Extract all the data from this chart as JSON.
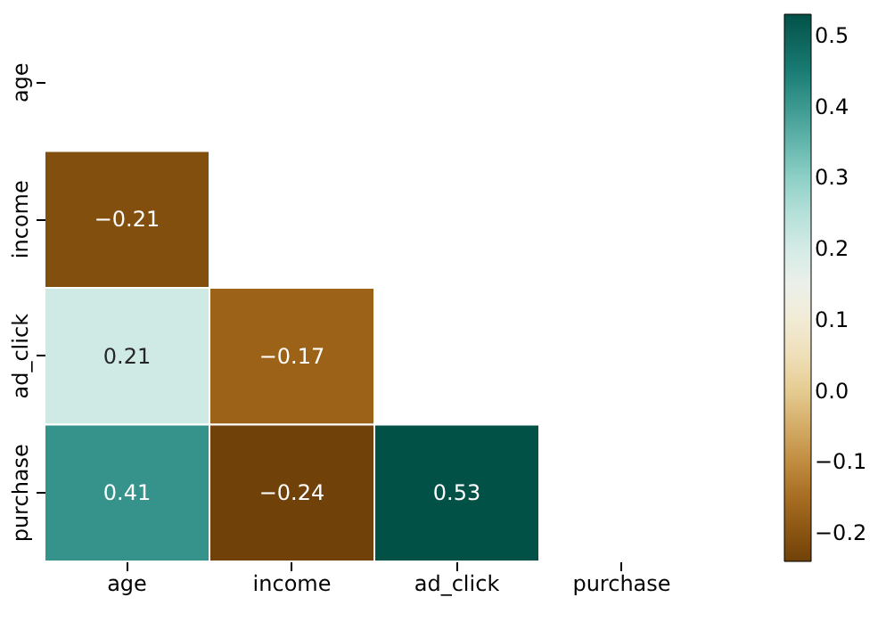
{
  "chart_data": {
    "type": "heatmap",
    "categories": [
      "age",
      "income",
      "ad_click",
      "purchase"
    ],
    "y_categories": [
      "age",
      "income",
      "ad_click",
      "purchase"
    ],
    "cells": [
      [
        null,
        null,
        null,
        null
      ],
      [
        -0.21,
        null,
        null,
        null
      ],
      [
        0.21,
        -0.17,
        null,
        null
      ],
      [
        0.41,
        -0.24,
        0.53,
        null
      ]
    ],
    "data_labels": true,
    "clim": [
      -0.24,
      0.53
    ],
    "cticks": [
      -0.2,
      -0.1,
      {
        "value": 0,
        "label": "0.0"
      },
      0.1,
      0.2,
      0.3,
      0.4,
      0.5
    ],
    "grid": false
  }
}
